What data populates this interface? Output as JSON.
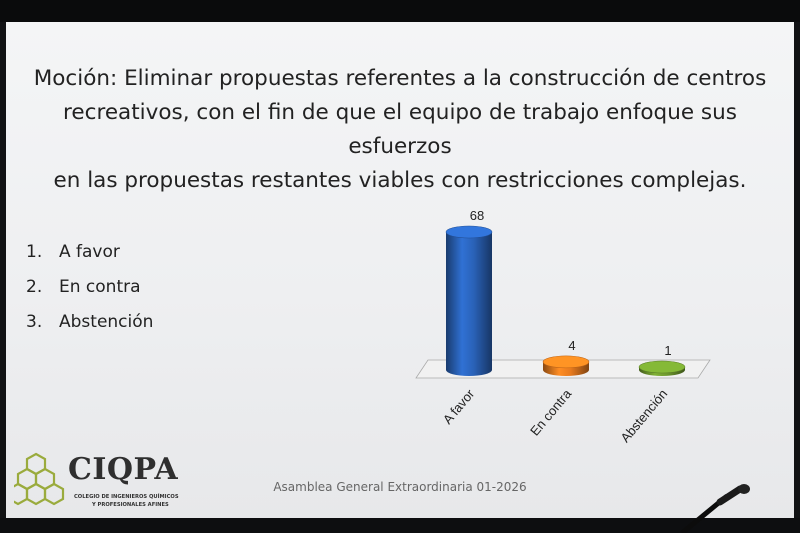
{
  "slide": {
    "title_lines": [
      "Moción: Eliminar propuestas referentes a la construcción de centros",
      "recreativos, con el fin de que el equipo de trabajo enfoque sus esfuerzos",
      "en las propuestas restantes viables con restricciones complejas."
    ],
    "options": [
      {
        "num": "1.",
        "label": "A favor"
      },
      {
        "num": "2.",
        "label": "En contra"
      },
      {
        "num": "3.",
        "label": "Abstención"
      }
    ],
    "footer": "Asamblea General Extraordinaria 01-2026",
    "logo": {
      "name": "CIQPA",
      "line1": "COLEGIO DE INGENIEROS QUÍMICOS",
      "line2": "Y PROFESIONALES AFINES"
    }
  },
  "chart_data": {
    "type": "bar",
    "categories": [
      "A favor",
      "En contra",
      "Abstención"
    ],
    "values": [
      68,
      4,
      1
    ],
    "colors": [
      "#2a62b8",
      "#e87b1e",
      "#6f9a2e"
    ],
    "title": "",
    "xlabel": "",
    "ylabel": ""
  }
}
